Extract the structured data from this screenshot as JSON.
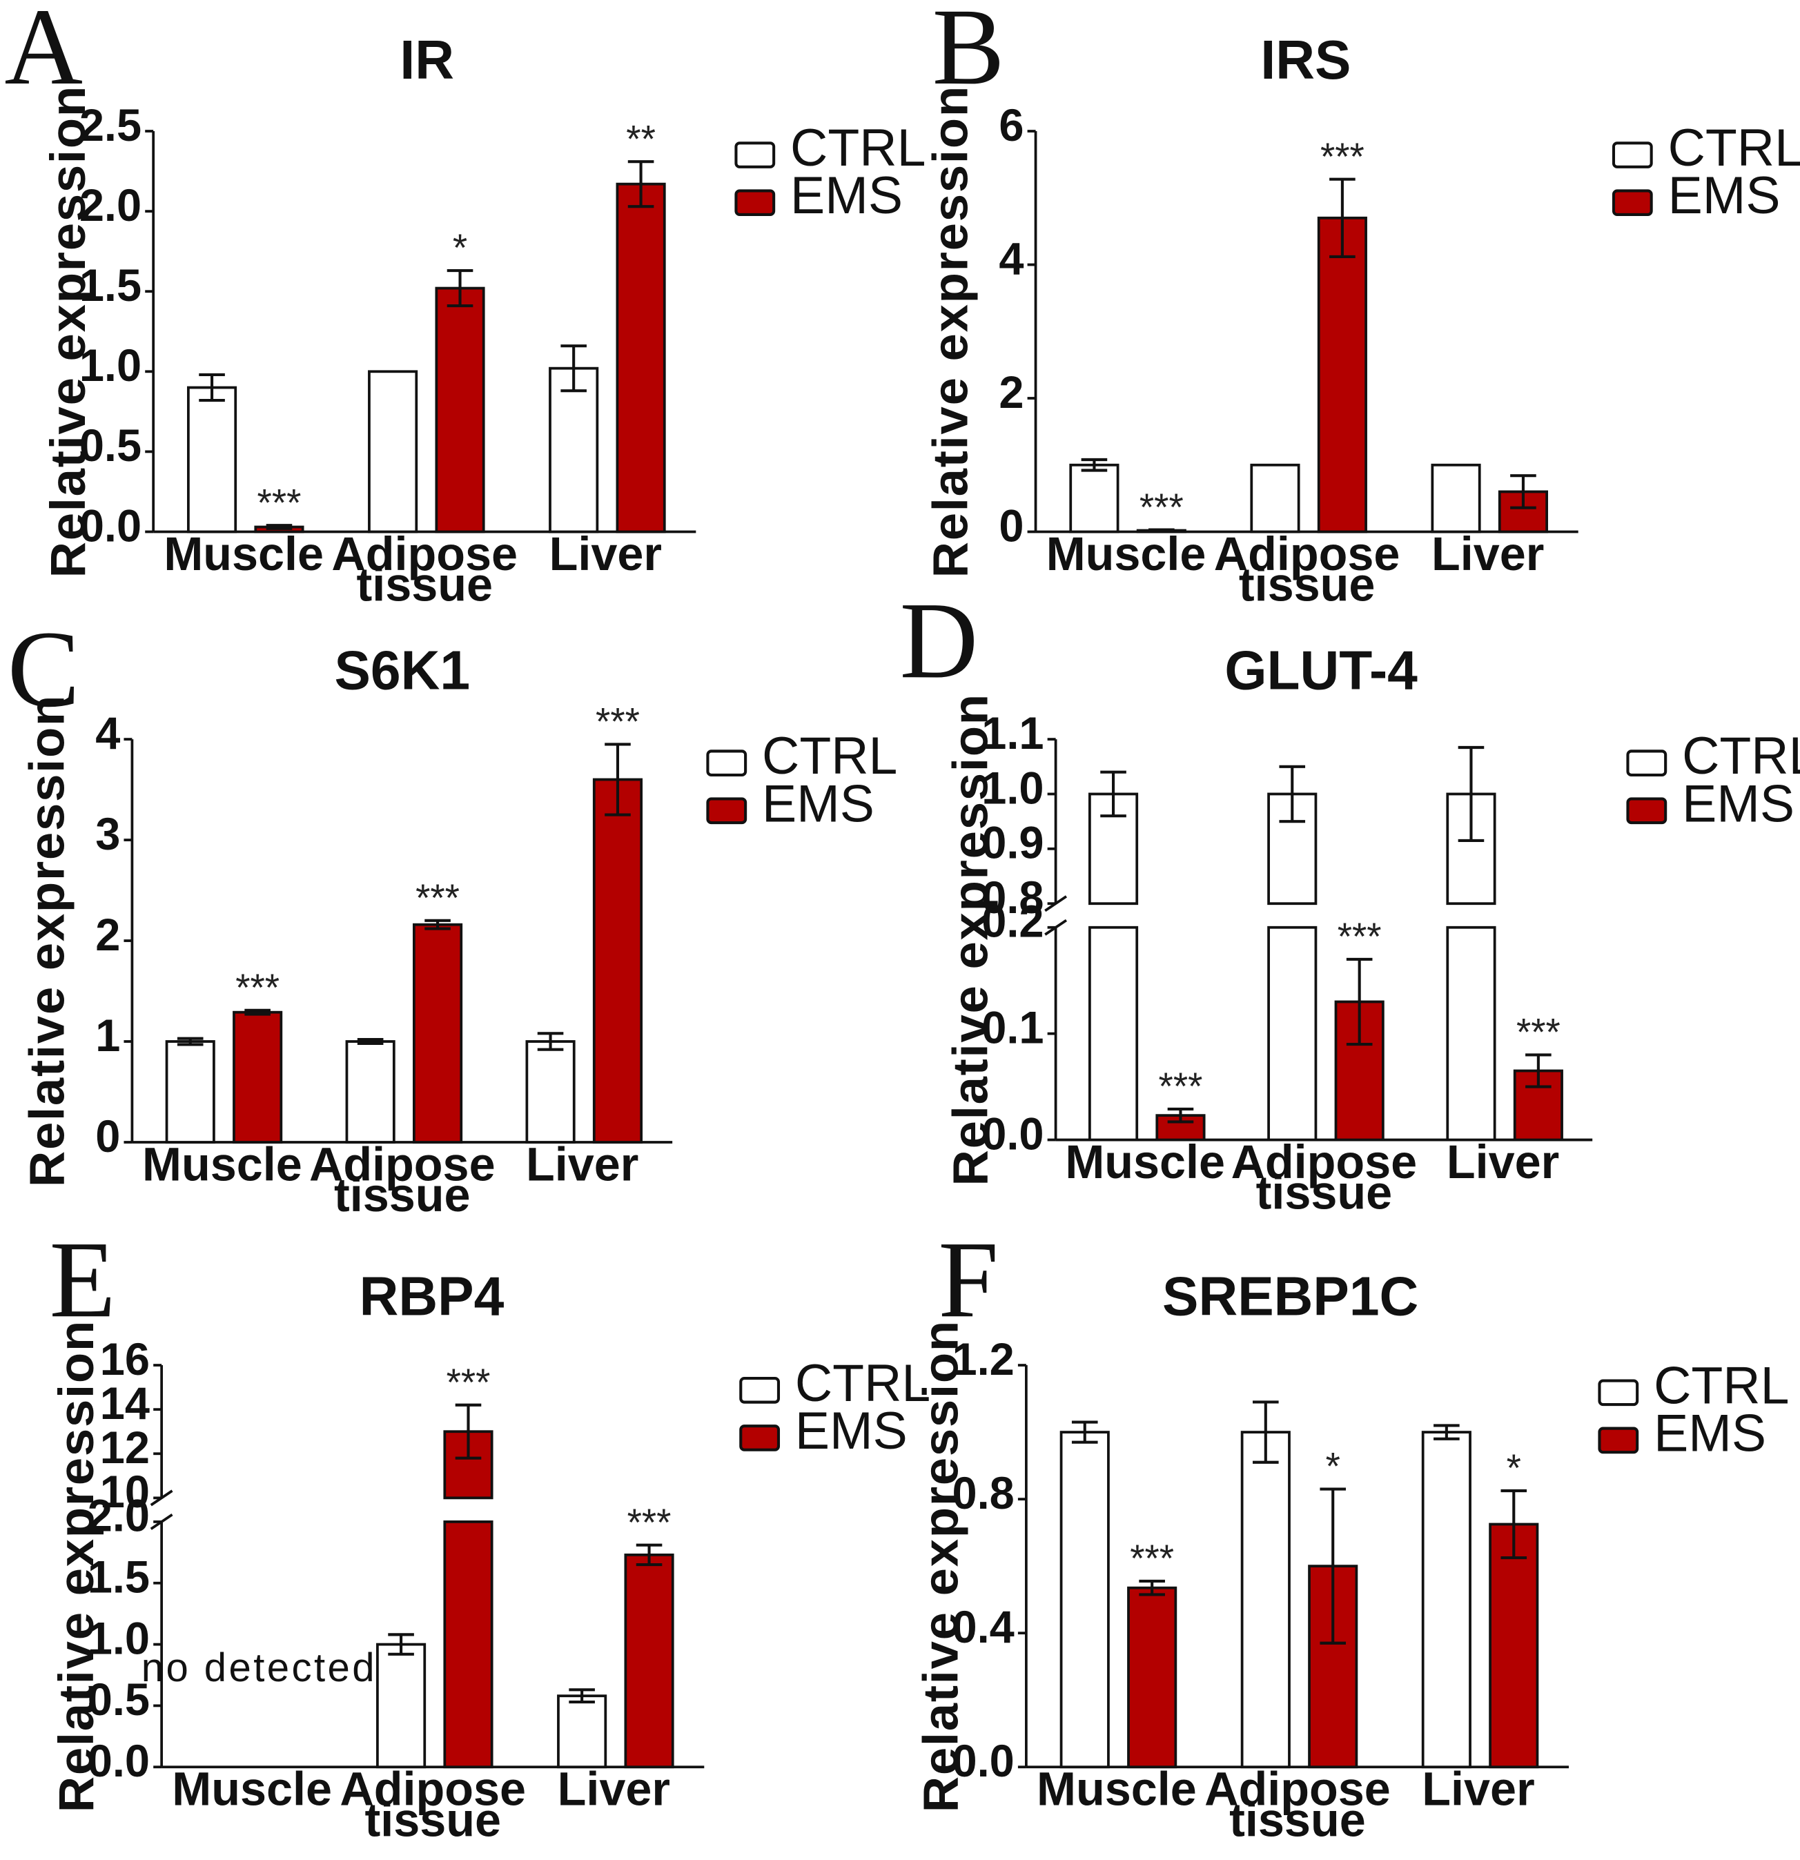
{
  "colors": {
    "ctrl": "#ffffff",
    "ems": "#b30000",
    "stroke": "#111111"
  },
  "chart_data": [
    {
      "panel": "A",
      "title": "IR",
      "type": "bar",
      "ylabel": "Relative expression",
      "categories": [
        [
          "Muscle"
        ],
        [
          "Adipose",
          "tissue"
        ],
        [
          "Liver"
        ]
      ],
      "ylim": [
        0,
        2.5
      ],
      "ticks": [
        "0.0",
        "0.5",
        "1.0",
        "1.5",
        "2.0",
        "2.5"
      ],
      "tick_values": [
        0,
        0.5,
        1.0,
        1.5,
        2.0,
        2.5
      ],
      "series": [
        {
          "name": "CTRL",
          "values": [
            0.9,
            1.0,
            1.02
          ],
          "errors": [
            0.08,
            0.0,
            0.14
          ]
        },
        {
          "name": "EMS",
          "values": [
            0.03,
            1.52,
            2.17
          ],
          "errors": [
            0.01,
            0.11,
            0.14
          ]
        }
      ],
      "significance": [
        "***",
        "*",
        "**"
      ],
      "legend": [
        "CTRL",
        "EMS"
      ]
    },
    {
      "panel": "B",
      "title": "IRS",
      "type": "bar",
      "ylabel": "Relative expression",
      "categories": [
        [
          "Muscle"
        ],
        [
          "Adipose",
          "tissue"
        ],
        [
          "Liver"
        ]
      ],
      "ylim": [
        0,
        6
      ],
      "ticks": [
        "0",
        "2",
        "4",
        "6"
      ],
      "tick_values": [
        0,
        2,
        4,
        6
      ],
      "series": [
        {
          "name": "CTRL",
          "values": [
            1.0,
            1.0,
            1.0
          ],
          "errors": [
            0.08,
            0.0,
            0.0
          ]
        },
        {
          "name": "EMS",
          "values": [
            0.02,
            4.7,
            0.6
          ],
          "errors": [
            0.01,
            0.58,
            0.24
          ]
        }
      ],
      "significance": [
        "***",
        "***",
        ""
      ],
      "legend": [
        "CTRL",
        "EMS"
      ]
    },
    {
      "panel": "C",
      "title": "S6K1",
      "type": "bar",
      "ylabel": "Relative expression",
      "categories": [
        [
          "Muscle"
        ],
        [
          "Adipose",
          "tissue"
        ],
        [
          "Liver"
        ]
      ],
      "ylim": [
        0,
        4
      ],
      "ticks": [
        "0",
        "1",
        "2",
        "3",
        "4"
      ],
      "tick_values": [
        0,
        1,
        2,
        3,
        4
      ],
      "series": [
        {
          "name": "CTRL",
          "values": [
            1.0,
            1.0,
            1.0
          ],
          "errors": [
            0.03,
            0.02,
            0.08
          ]
        },
        {
          "name": "EMS",
          "values": [
            1.29,
            2.16,
            3.6
          ],
          "errors": [
            0.02,
            0.04,
            0.35
          ]
        }
      ],
      "significance": [
        "***",
        "***",
        "***"
      ],
      "legend": [
        "CTRL",
        "EMS"
      ]
    },
    {
      "panel": "D",
      "title": "GLUT-4",
      "type": "bar",
      "ylabel": "Relative expression",
      "categories": [
        [
          "Muscle"
        ],
        [
          "Adipose",
          "tissue"
        ],
        [
          "Liver"
        ]
      ],
      "ylim": [
        0,
        1.1
      ],
      "axis_break": [
        0.2,
        0.8
      ],
      "ticks": [
        "0.0",
        "0.1",
        "0.2",
        "0.8",
        "0.9",
        "1.0",
        "1.1"
      ],
      "tick_values": [
        0,
        0.1,
        0.2,
        0.8,
        0.9,
        1.0,
        1.1
      ],
      "series": [
        {
          "name": "CTRL",
          "values": [
            1.0,
            1.0,
            1.0
          ],
          "errors": [
            0.04,
            0.05,
            0.085
          ]
        },
        {
          "name": "EMS",
          "values": [
            0.023,
            0.13,
            0.065
          ],
          "errors": [
            0.006,
            0.04,
            0.015
          ]
        }
      ],
      "significance": [
        "***",
        "***",
        "***"
      ],
      "legend": [
        "CTRL",
        "EMS"
      ]
    },
    {
      "panel": "E",
      "title": "RBP4",
      "type": "bar",
      "ylabel": "Relative expression",
      "categories": [
        [
          "Muscle"
        ],
        [
          "Adipose",
          "tissue"
        ],
        [
          "Liver"
        ]
      ],
      "ylim": [
        0,
        16
      ],
      "axis_break": [
        2.0,
        10
      ],
      "ticks": [
        "0.0",
        "0.5",
        "1.0",
        "1.5",
        "2.0",
        "10",
        "12",
        "14",
        "16"
      ],
      "tick_values": [
        0,
        0.5,
        1.0,
        1.5,
        2.0,
        10,
        12,
        14,
        16
      ],
      "series": [
        {
          "name": "CTRL",
          "values": [
            null,
            1.0,
            0.58
          ],
          "errors": [
            null,
            0.08,
            0.05
          ]
        },
        {
          "name": "EMS",
          "values": [
            null,
            13.0,
            1.73
          ],
          "errors": [
            null,
            1.2,
            0.08
          ]
        }
      ],
      "significance": [
        "",
        "***",
        "***"
      ],
      "annotation": "no detected",
      "legend": [
        "CTRL",
        "EMS"
      ]
    },
    {
      "panel": "F",
      "title": "SREBP1C",
      "type": "bar",
      "ylabel": "Relative expression",
      "categories": [
        [
          "Muscle"
        ],
        [
          "Adipose",
          "tissue"
        ],
        [
          "Liver"
        ]
      ],
      "ylim": [
        0,
        1.2
      ],
      "ticks": [
        "0.0",
        "0.4",
        "0.8",
        "1.2"
      ],
      "tick_values": [
        0,
        0.4,
        0.8,
        1.2
      ],
      "series": [
        {
          "name": "CTRL",
          "values": [
            1.0,
            1.0,
            1.0
          ],
          "errors": [
            0.03,
            0.09,
            0.02
          ]
        },
        {
          "name": "EMS",
          "values": [
            0.535,
            0.6,
            0.725
          ],
          "errors": [
            0.02,
            0.23,
            0.1
          ]
        }
      ],
      "significance": [
        "***",
        "*",
        "*"
      ],
      "legend": [
        "CTRL",
        "EMS"
      ]
    }
  ]
}
